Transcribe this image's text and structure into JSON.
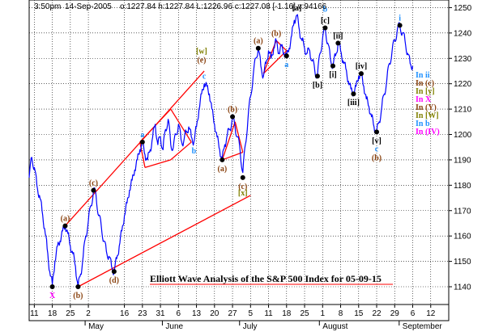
{
  "header": {
    "time": "3:50pm",
    "date": "14-Sep-2005",
    "ohlc": "o:1227.84 h:1227.84 L:1226.96 c:1227.08 [-1.16] v:94166"
  },
  "footer_brand": "",
  "colors": {
    "price": "#0000ff",
    "trend": "#ff0000",
    "pivot": "#000000",
    "label_brown": "#8b4513",
    "label_cyan": "#1e90ff",
    "label_magenta": "#ff00ff",
    "label_black": "#000000",
    "label_olive": "#808000"
  },
  "chart_data": {
    "type": "line",
    "title": "Elliott Wave Analysis of the S&P 500 Index for 05-09-15",
    "xlabel": "",
    "ylabel": "",
    "ylim": [
      1133,
      1253
    ],
    "yticks": [
      1140,
      1150,
      1160,
      1170,
      1180,
      1190,
      1200,
      1210,
      1220,
      1230,
      1240,
      1250
    ],
    "x_day_ticks": [
      {
        "d": 0,
        "label": "11"
      },
      {
        "d": 7,
        "label": "18"
      },
      {
        "d": 14,
        "label": "25"
      },
      {
        "d": 21,
        "label": "2"
      },
      {
        "d": 35,
        "label": "16"
      },
      {
        "d": 42,
        "label": "23"
      },
      {
        "d": 49,
        "label": "31"
      },
      {
        "d": 56,
        "label": "6"
      },
      {
        "d": 63,
        "label": "13"
      },
      {
        "d": 70,
        "label": "20"
      },
      {
        "d": 77,
        "label": "27"
      },
      {
        "d": 84,
        "label": "5"
      },
      {
        "d": 91,
        "label": "11"
      },
      {
        "d": 98,
        "label": "18"
      },
      {
        "d": 105,
        "label": "25"
      },
      {
        "d": 112,
        "label": "1"
      },
      {
        "d": 119,
        "label": "8"
      },
      {
        "d": 126,
        "label": "15"
      },
      {
        "d": 133,
        "label": "22"
      },
      {
        "d": 140,
        "label": "29"
      },
      {
        "d": 147,
        "label": "6"
      },
      {
        "d": 154,
        "label": "12"
      }
    ],
    "months": [
      {
        "d": 21,
        "label": "May"
      },
      {
        "d": 51,
        "label": "June"
      },
      {
        "d": 81,
        "label": "July"
      },
      {
        "d": 112,
        "label": "August"
      },
      {
        "d": 143,
        "label": "September"
      }
    ],
    "series": [
      {
        "points": [
          [
            -2,
            1183
          ],
          [
            -1,
            1191
          ],
          [
            0,
            1187
          ],
          [
            1,
            1180
          ],
          [
            2,
            1176
          ],
          [
            3,
            1170
          ],
          [
            4,
            1163
          ],
          [
            5,
            1155
          ],
          [
            6,
            1146
          ],
          [
            7,
            1141
          ],
          [
            8,
            1150
          ],
          [
            9,
            1156
          ],
          [
            10,
            1158
          ],
          [
            11,
            1162
          ],
          [
            12,
            1164
          ],
          [
            13,
            1161
          ],
          [
            14,
            1156
          ],
          [
            15,
            1153
          ],
          [
            16,
            1148
          ],
          [
            17,
            1140
          ],
          [
            18,
            1145
          ],
          [
            19,
            1152
          ],
          [
            20,
            1160
          ],
          [
            21,
            1166
          ],
          [
            22,
            1172
          ],
          [
            23,
            1178
          ],
          [
            24,
            1176
          ],
          [
            25,
            1168
          ],
          [
            26,
            1164
          ],
          [
            27,
            1158
          ],
          [
            28,
            1154
          ],
          [
            29,
            1152
          ],
          [
            30,
            1148
          ],
          [
            31,
            1146
          ],
          [
            32,
            1151
          ],
          [
            33,
            1156
          ],
          [
            34,
            1162
          ],
          [
            35,
            1168
          ],
          [
            36,
            1173
          ],
          [
            37,
            1178
          ],
          [
            38,
            1182
          ],
          [
            39,
            1186
          ],
          [
            40,
            1190
          ],
          [
            41,
            1194
          ],
          [
            42,
            1197
          ],
          [
            43,
            1192
          ],
          [
            44,
            1190
          ],
          [
            45,
            1194
          ],
          [
            46,
            1199
          ],
          [
            47,
            1204
          ],
          [
            48,
            1196
          ],
          [
            49,
            1199
          ],
          [
            50,
            1194
          ],
          [
            51,
            1202
          ],
          [
            52,
            1206
          ],
          [
            53,
            1196
          ],
          [
            54,
            1195
          ],
          [
            55,
            1200
          ],
          [
            56,
            1204
          ],
          [
            57,
            1198
          ],
          [
            58,
            1197
          ],
          [
            59,
            1201
          ],
          [
            60,
            1203
          ],
          [
            61,
            1199
          ],
          [
            62,
            1197
          ],
          [
            63,
            1203
          ],
          [
            64,
            1210
          ],
          [
            65,
            1216
          ],
          [
            66,
            1220
          ],
          [
            67,
            1219
          ],
          [
            68,
            1216
          ],
          [
            69,
            1210
          ],
          [
            70,
            1204
          ],
          [
            71,
            1199
          ],
          [
            72,
            1194
          ],
          [
            73,
            1190
          ],
          [
            74,
            1196
          ],
          [
            75,
            1200
          ],
          [
            76,
            1202
          ],
          [
            77,
            1207
          ],
          [
            78,
            1203
          ],
          [
            79,
            1199
          ],
          [
            80,
            1193
          ],
          [
            81,
            1185
          ],
          [
            82,
            1196
          ],
          [
            83,
            1206
          ],
          [
            84,
            1215
          ],
          [
            85,
            1223
          ],
          [
            86,
            1230
          ],
          [
            87,
            1234
          ],
          [
            88,
            1227
          ],
          [
            89,
            1223
          ],
          [
            90,
            1228
          ],
          [
            91,
            1233
          ],
          [
            92,
            1230
          ],
          [
            93,
            1234
          ],
          [
            94,
            1237
          ],
          [
            95,
            1232
          ],
          [
            96,
            1235
          ],
          [
            97,
            1232
          ],
          [
            98,
            1231
          ],
          [
            99,
            1234
          ],
          [
            100,
            1239
          ],
          [
            101,
            1245
          ],
          [
            102,
            1247
          ],
          [
            103,
            1241
          ],
          [
            104,
            1237
          ],
          [
            105,
            1234
          ],
          [
            106,
            1232
          ],
          [
            107,
            1233
          ],
          [
            108,
            1229
          ],
          [
            109,
            1225
          ],
          [
            110,
            1223
          ],
          [
            111,
            1232
          ],
          [
            112,
            1238
          ],
          [
            113,
            1242
          ],
          [
            114,
            1236
          ],
          [
            115,
            1230
          ],
          [
            116,
            1227
          ],
          [
            117,
            1231
          ],
          [
            118,
            1236
          ],
          [
            119,
            1233
          ],
          [
            120,
            1229
          ],
          [
            121,
            1226
          ],
          [
            122,
            1221
          ],
          [
            123,
            1218
          ],
          [
            124,
            1216
          ],
          [
            125,
            1219
          ],
          [
            126,
            1223
          ],
          [
            127,
            1224
          ],
          [
            128,
            1219
          ],
          [
            129,
            1214
          ],
          [
            130,
            1211
          ],
          [
            131,
            1207
          ],
          [
            132,
            1203
          ],
          [
            133,
            1201
          ],
          [
            134,
            1205
          ],
          [
            135,
            1211
          ],
          [
            136,
            1216
          ],
          [
            137,
            1222
          ],
          [
            138,
            1228
          ],
          [
            139,
            1233
          ],
          [
            140,
            1237
          ],
          [
            141,
            1241
          ],
          [
            142,
            1243
          ],
          [
            143,
            1240
          ],
          [
            144,
            1237
          ],
          [
            145,
            1232
          ],
          [
            146,
            1228
          ],
          [
            147,
            1227
          ]
        ]
      }
    ],
    "annotations": [
      {
        "d": 7,
        "v": 1140,
        "text": "X",
        "color": "label_magenta",
        "pos": "below",
        "dot": true
      },
      {
        "d": 12,
        "v": 1164,
        "text": "(a)",
        "color": "label_brown",
        "pos": "above",
        "dot": true
      },
      {
        "d": 17,
        "v": 1140,
        "text": "(b)",
        "color": "label_brown",
        "pos": "below",
        "dot": true
      },
      {
        "d": 23,
        "v": 1178,
        "text": "(c)",
        "color": "label_brown",
        "pos": "above",
        "dot": true
      },
      {
        "d": 31,
        "v": 1146,
        "text": "(d)",
        "color": "label_brown",
        "pos": "below",
        "dot": true
      },
      {
        "d": 42,
        "v": 1197,
        "text": "a",
        "color": "label_cyan",
        "pos": "above",
        "dot": true
      },
      {
        "d": 66,
        "v": 1220,
        "text": "c",
        "color": "label_cyan",
        "pos": "above",
        "dot": false
      },
      {
        "d": 65,
        "v": 1222,
        "text": "(e)",
        "color": "label_brown",
        "pos": "above",
        "dot": false,
        "dy": -20
      },
      {
        "d": 65,
        "v": 1222,
        "text": "[w]",
        "color": "label_olive",
        "pos": "above",
        "dot": false,
        "dy": -31
      },
      {
        "d": 62,
        "v": 1197,
        "text": "b",
        "color": "label_cyan",
        "pos": "below",
        "dot": false
      },
      {
        "d": 73,
        "v": 1190,
        "text": "(a)",
        "color": "label_brown",
        "pos": "below",
        "dot": true
      },
      {
        "d": 77,
        "v": 1207,
        "text": "(b)",
        "color": "label_brown",
        "pos": "above",
        "dot": true
      },
      {
        "d": 81,
        "v": 1183,
        "text": "(c)",
        "color": "label_brown",
        "pos": "below",
        "dot": true
      },
      {
        "d": 81,
        "v": 1183,
        "text": "[x]",
        "color": "label_olive",
        "pos": "below",
        "dot": false,
        "dy": 22
      },
      {
        "d": 87,
        "v": 1234,
        "text": "(a)",
        "color": "label_brown",
        "pos": "above",
        "dot": true
      },
      {
        "d": 94,
        "v": 1237,
        "text": "(b)",
        "color": "label_brown",
        "pos": "above",
        "dot": false
      },
      {
        "d": 98,
        "v": 1231,
        "text": "a",
        "color": "label_cyan",
        "pos": "below",
        "dot": true
      },
      {
        "d": 102,
        "v": 1247,
        "text": "[a]",
        "color": "label_black",
        "pos": "above",
        "dot": false
      },
      {
        "d": 110,
        "v": 1223,
        "text": "[b]",
        "color": "label_black",
        "pos": "below",
        "dot": true
      },
      {
        "d": 113,
        "v": 1242,
        "text": "[c]",
        "color": "label_black",
        "pos": "above",
        "dot": true
      },
      {
        "d": 113,
        "v": 1242,
        "text": "b",
        "color": "label_cyan",
        "pos": "above",
        "dot": false,
        "dy": -20
      },
      {
        "d": 116,
        "v": 1227,
        "text": "[i]",
        "color": "label_black",
        "pos": "below",
        "dot": true
      },
      {
        "d": 118,
        "v": 1236,
        "text": "[ii]",
        "color": "label_black",
        "pos": "above",
        "dot": true
      },
      {
        "d": 124,
        "v": 1216,
        "text": "[iii]",
        "color": "label_black",
        "pos": "below",
        "dot": true
      },
      {
        "d": 127,
        "v": 1224,
        "text": "[iv]",
        "color": "label_black",
        "pos": "above",
        "dot": true
      },
      {
        "d": 133,
        "v": 1201,
        "text": "[v]",
        "color": "label_black",
        "pos": "below",
        "dot": true
      },
      {
        "d": 133,
        "v": 1201,
        "text": "c",
        "color": "label_cyan",
        "pos": "below",
        "dot": false,
        "dy": 24
      },
      {
        "d": 133,
        "v": 1201,
        "text": "(b)",
        "color": "label_brown",
        "pos": "below",
        "dot": false,
        "dy": 35
      },
      {
        "d": 142,
        "v": 1243,
        "text": "i",
        "color": "label_cyan",
        "pos": "above",
        "dot": true
      }
    ],
    "lines": [
      {
        "from": [
          12,
          1164
        ],
        "to": [
          66,
          1225
        ]
      },
      {
        "from": [
          17,
          1140
        ],
        "to": [
          84,
          1176
        ]
      },
      {
        "from": [
          41,
          1197
        ],
        "to": [
          53,
          1210
        ]
      },
      {
        "from": [
          53,
          1210
        ],
        "to": [
          61,
          1197
        ]
      },
      {
        "from": [
          61,
          1197
        ],
        "to": [
          53,
          1190
        ]
      },
      {
        "from": [
          53,
          1190
        ],
        "to": [
          43,
          1187
        ]
      },
      {
        "from": [
          43,
          1187
        ],
        "to": [
          41,
          1197
        ]
      },
      {
        "from": [
          73,
          1190
        ],
        "to": [
          78,
          1205
        ]
      },
      {
        "from": [
          78,
          1205
        ],
        "to": [
          81,
          1193
        ]
      },
      {
        "from": [
          81,
          1193
        ],
        "to": [
          73,
          1190
        ]
      },
      {
        "from": [
          89,
          1224
        ],
        "to": [
          94,
          1237
        ]
      },
      {
        "from": [
          94,
          1237
        ],
        "to": [
          98,
          1233
        ]
      },
      {
        "from": [
          98,
          1233
        ],
        "to": [
          89,
          1224
        ]
      }
    ],
    "legend": [
      {
        "text": "In ii",
        "color": "label_cyan"
      },
      {
        "text": "In (c)",
        "color": "label_brown"
      },
      {
        "text": "In [y]",
        "color": "label_olive"
      },
      {
        "text": "In X",
        "color": "label_magenta"
      },
      {
        "text": "In (Y)",
        "color": "label_brown"
      },
      {
        "text": "In [W]",
        "color": "label_olive"
      },
      {
        "text": "In b",
        "color": "label_cyan"
      },
      {
        "text": "In (IV)",
        "color": "label_magenta"
      }
    ],
    "legend_position": "right"
  }
}
